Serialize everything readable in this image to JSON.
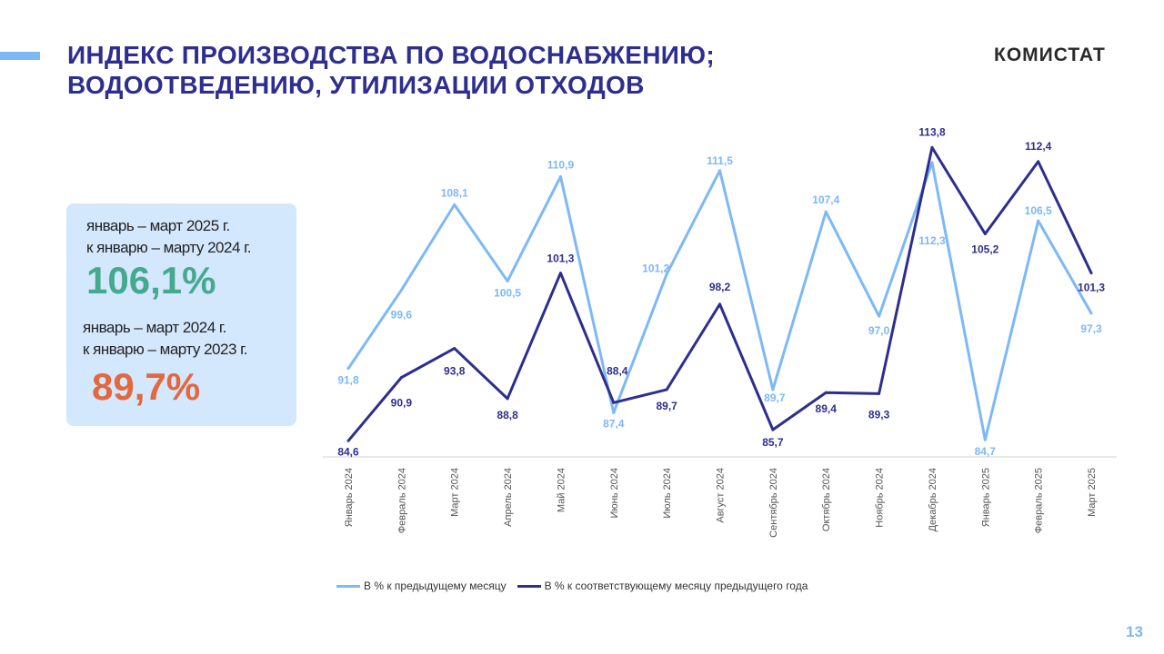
{
  "header": {
    "title_line1": "ИНДЕКС ПРОИЗВОДСТВА ПО ВОДОСНАБЖЕНИЮ;",
    "title_line2": "ВОДООТВЕДЕНИЮ, УТИЛИЗАЦИИ ОТХОДОВ",
    "logo": "КОМИСТАТ"
  },
  "summary": {
    "p1_line1": "январь – март 2025 г.",
    "p1_line2": "к январю – марту 2024 г.",
    "p1_value": "106,1%",
    "p2_line1": "январь – март 2024 г.",
    "p2_line2": "к январю – марту 2023 г.",
    "p2_value": "89,7%",
    "colors": {
      "positive": "#45a98e",
      "negative": "#e3673f"
    }
  },
  "page_number": "13",
  "chart_data": {
    "type": "line",
    "title": "",
    "xlabel": "",
    "ylabel": "",
    "categories": [
      "Январь 2024",
      "Февраль 2024",
      "Март 2024",
      "Апрель 2024",
      "Май 2024",
      "Июнь 2024",
      "Июль 2024",
      "Август 2024",
      "Сентябрь 2024",
      "Октябрь 2024",
      "Ноябрь 2024",
      "Декабрь 2024",
      "Январь 2025",
      "Февраль 2025",
      "Март 2025"
    ],
    "ylim": [
      83,
      115
    ],
    "grid": false,
    "legend_position": "bottom",
    "series": [
      {
        "name": "В % к предыдущему месяцу",
        "color": "#7db8f7",
        "values": [
          91.8,
          99.6,
          108.1,
          100.5,
          110.9,
          87.4,
          101.2,
          111.5,
          89.7,
          107.4,
          97.0,
          112.3,
          84.7,
          106.5,
          97.3
        ],
        "labels": [
          "91,8",
          "99,6",
          "108,1",
          "100,5",
          "110,9",
          "87,4",
          "101,2",
          "111,5",
          "89,7",
          "107,4",
          "97,0",
          "112,3",
          "84,7",
          "106,5",
          "97,3"
        ]
      },
      {
        "name": "В % к соответствующему месяцу предыдущего года",
        "color": "#2e2e8f",
        "values": [
          84.6,
          90.9,
          93.8,
          88.8,
          101.3,
          88.4,
          89.7,
          98.2,
          85.7,
          89.4,
          89.3,
          113.8,
          105.2,
          112.4,
          101.3
        ],
        "labels": [
          "84,6",
          "90,9",
          "93,8",
          "88,8",
          "101,3",
          "88,4",
          "89,7",
          "98,2",
          "85,7",
          "89,4",
          "89,3",
          "113,8",
          "105,2",
          "112,4",
          "101,3"
        ]
      }
    ]
  }
}
